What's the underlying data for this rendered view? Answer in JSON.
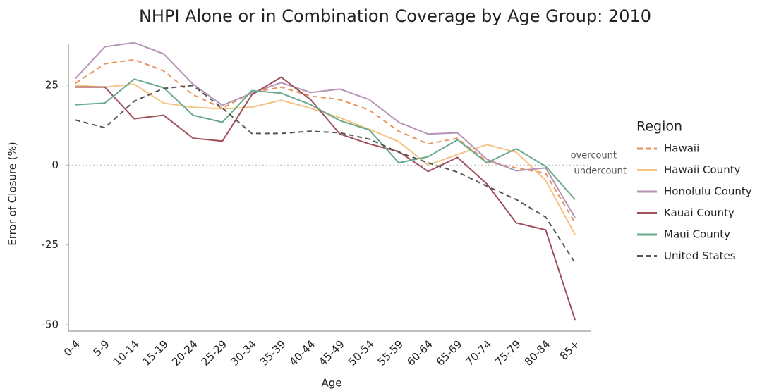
{
  "chart_data": {
    "type": "line",
    "title": "NHPI Alone or in Combination Coverage by Age Group: 2010",
    "x_label": "Age",
    "y_label": "Error of Closure (%)",
    "legend_title": "Region",
    "annotations": [
      "overcount",
      "undercount"
    ],
    "categories": [
      "0-4",
      "5-9",
      "10-14",
      "15-19",
      "20-24",
      "25-29",
      "30-34",
      "35-39",
      "40-44",
      "45-49",
      "50-54",
      "55-59",
      "60-64",
      "65-69",
      "70-74",
      "75-79",
      "80-84",
      "85+"
    ],
    "ylim": [
      -52,
      38
    ],
    "yticks": [
      -50,
      -25,
      0,
      25
    ],
    "series": [
      {
        "name": "Hawaii",
        "color": "#e8935a",
        "dashed": true,
        "values": [
          25.6,
          31.7,
          33.0,
          29.5,
          22.0,
          17.8,
          22.7,
          24.4,
          21.6,
          20.5,
          17.2,
          10.6,
          6.6,
          8.4,
          1.1,
          -0.9,
          -2.6,
          -18.1
        ]
      },
      {
        "name": "Hawaii County",
        "color": "#f5c383",
        "dashed": false,
        "values": [
          24.9,
          24.4,
          25.3,
          19.4,
          18.1,
          17.6,
          18.1,
          20.3,
          17.8,
          14.8,
          11.2,
          7.3,
          0,
          3.3,
          6.4,
          4.0,
          -4.8,
          -21.8
        ]
      },
      {
        "name": "Honolulu County",
        "color": "#b594b8",
        "dashed": false,
        "values": [
          27.1,
          37.0,
          38.3,
          34.8,
          25.3,
          18.7,
          22.5,
          25.8,
          22.7,
          23.8,
          20.5,
          13.4,
          9.7,
          10.1,
          1.8,
          -1.8,
          -0.9,
          -16.5
        ]
      },
      {
        "name": "Kauai County",
        "color": "#a0505a",
        "dashed": false,
        "values": [
          24.4,
          24.4,
          14.5,
          15.6,
          8.4,
          7.5,
          22.0,
          27.5,
          20.5,
          9.7,
          6.6,
          4.2,
          -2.0,
          2.4,
          -5.9,
          -18.1,
          -20.3,
          -48.5
        ]
      },
      {
        "name": "Maui County",
        "color": "#6aaa8c",
        "dashed": false,
        "values": [
          18.9,
          19.4,
          26.9,
          24.2,
          15.6,
          13.4,
          23.3,
          22.5,
          18.9,
          13.9,
          11.0,
          0.7,
          2.6,
          7.9,
          0.7,
          5.1,
          -0.4,
          -10.8
        ]
      },
      {
        "name": "United States",
        "color": "#555555",
        "dashed": true,
        "values": [
          14.1,
          11.7,
          20.0,
          24.0,
          24.9,
          17.8,
          9.9,
          9.9,
          10.6,
          10.1,
          8.1,
          4.0,
          0.7,
          -2.2,
          -6.6,
          -10.8,
          -16.3,
          -30.6
        ]
      }
    ]
  }
}
